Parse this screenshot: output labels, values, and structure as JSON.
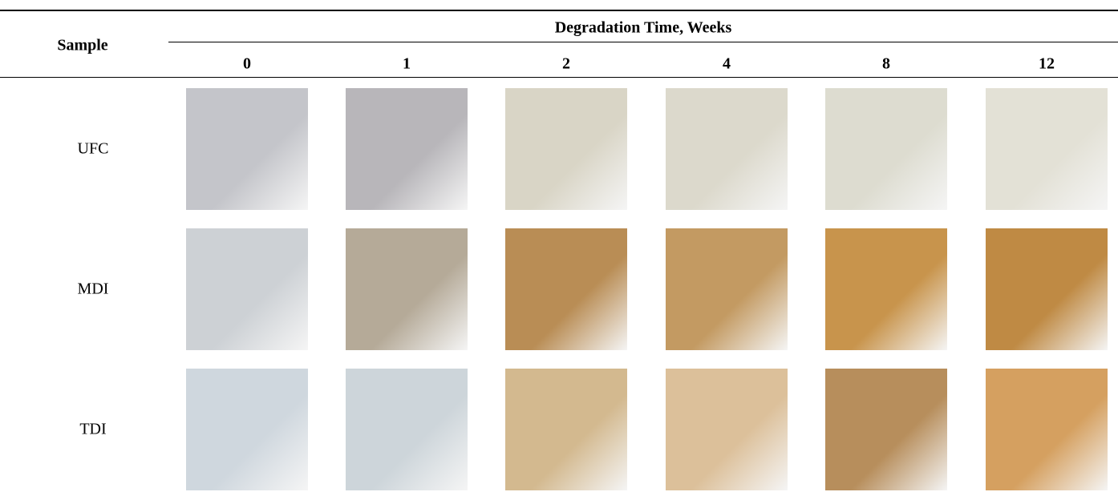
{
  "header": {
    "sample": "Sample",
    "group": "Degradation Time, Weeks",
    "weeks": [
      0,
      1,
      2,
      4,
      8,
      12
    ]
  },
  "rows": [
    "UFC",
    "MDI",
    "TDI"
  ]
}
